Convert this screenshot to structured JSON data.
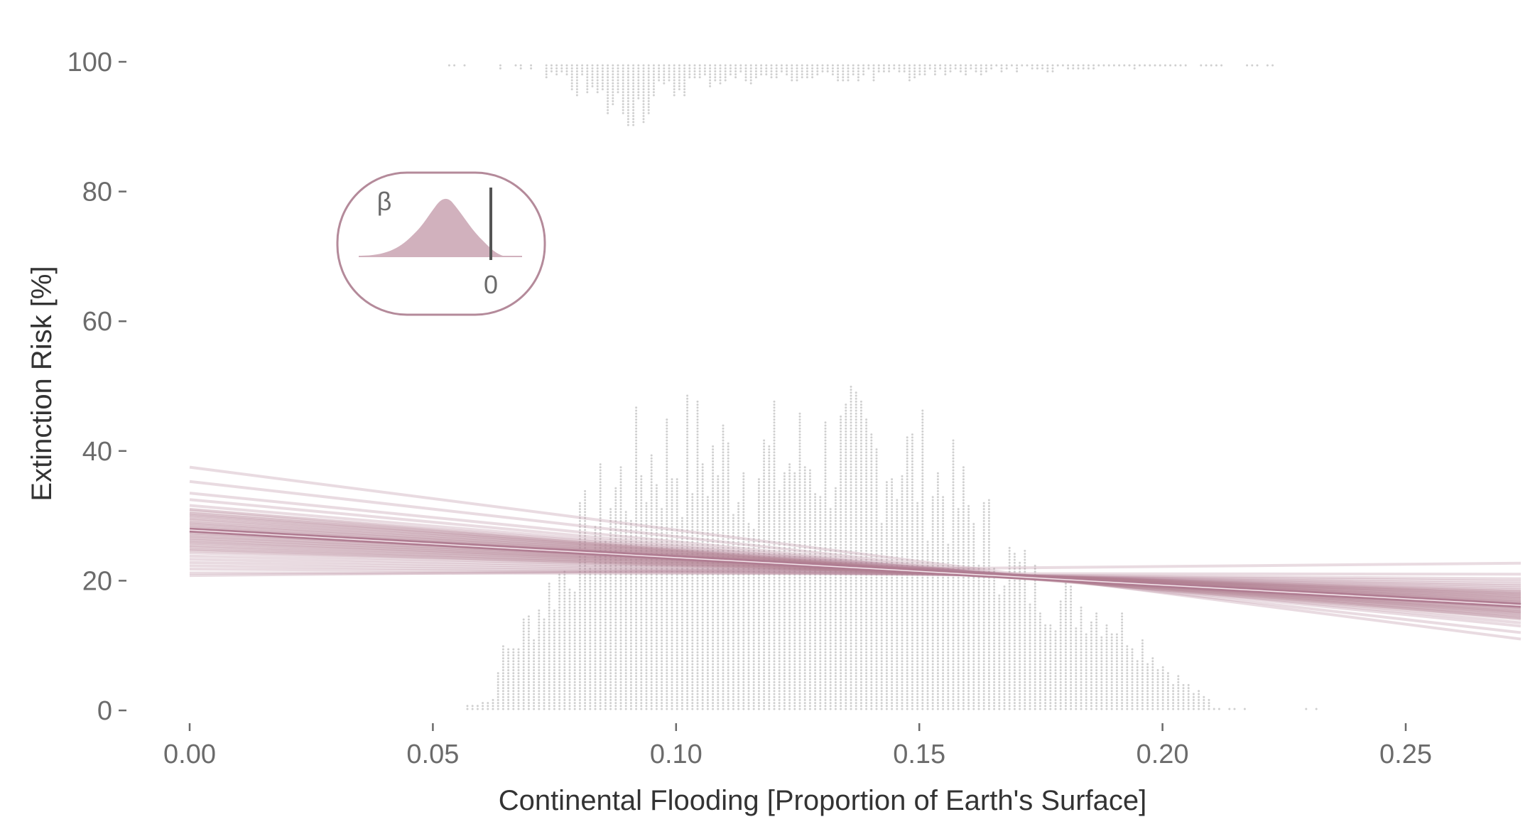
{
  "chart_data": {
    "type": "line",
    "title": "",
    "xlabel": "Continental Flooding [Proportion of Earth's Surface]",
    "ylabel": "Extinction Risk [%]",
    "xlim": [
      -0.012,
      0.263
    ],
    "ylim": [
      -4,
      106
    ],
    "x_ticks": [
      0.0,
      0.05,
      0.1,
      0.15,
      0.2,
      0.25
    ],
    "x_tick_labels": [
      "0.00",
      "0.05",
      "0.10",
      "0.15",
      "0.20",
      "0.25"
    ],
    "y_ticks": [
      0,
      20,
      40,
      60,
      80,
      100
    ],
    "y_tick_labels": [
      "0",
      "20",
      "40",
      "60",
      "80",
      "100"
    ],
    "grid": false,
    "line_color": "#b07d92",
    "dot_color": "#d0d0d0",
    "posterior_mean_line": {
      "x": [
        0.0,
        0.263
      ],
      "y": [
        27.8,
        16.2
      ]
    },
    "posterior_draws": [
      {
        "y0": 37.5,
        "y1": 11.0
      },
      {
        "y0": 35.3,
        "y1": 12.0
      },
      {
        "y0": 33.5,
        "y1": 13.0
      },
      {
        "y0": 32.5,
        "y1": 13.5
      },
      {
        "y0": 31.6,
        "y1": 14.2
      },
      {
        "y0": 31.0,
        "y1": 14.6
      },
      {
        "y0": 30.4,
        "y1": 15.0
      },
      {
        "y0": 30.0,
        "y1": 15.2
      },
      {
        "y0": 29.5,
        "y1": 15.5
      },
      {
        "y0": 29.0,
        "y1": 15.8
      },
      {
        "y0": 28.6,
        "y1": 16.0
      },
      {
        "y0": 28.2,
        "y1": 16.3
      },
      {
        "y0": 27.8,
        "y1": 16.6
      },
      {
        "y0": 27.4,
        "y1": 16.8
      },
      {
        "y0": 27.0,
        "y1": 17.0
      },
      {
        "y0": 26.6,
        "y1": 17.3
      },
      {
        "y0": 26.2,
        "y1": 17.5
      },
      {
        "y0": 25.8,
        "y1": 17.8
      },
      {
        "y0": 25.3,
        "y1": 18.0
      },
      {
        "y0": 24.8,
        "y1": 18.3
      },
      {
        "y0": 24.3,
        "y1": 18.6
      },
      {
        "y0": 23.8,
        "y1": 18.9
      },
      {
        "y0": 23.3,
        "y1": 19.2
      },
      {
        "y0": 22.8,
        "y1": 19.5
      },
      {
        "y0": 22.3,
        "y1": 19.9
      },
      {
        "y0": 21.8,
        "y1": 20.3
      },
      {
        "y0": 21.2,
        "y1": 21.0
      },
      {
        "y0": 20.8,
        "y1": 22.7
      }
    ],
    "inset": {
      "label": "β",
      "zero_label": "0",
      "description": "posterior density of slope coefficient relative to zero"
    }
  }
}
